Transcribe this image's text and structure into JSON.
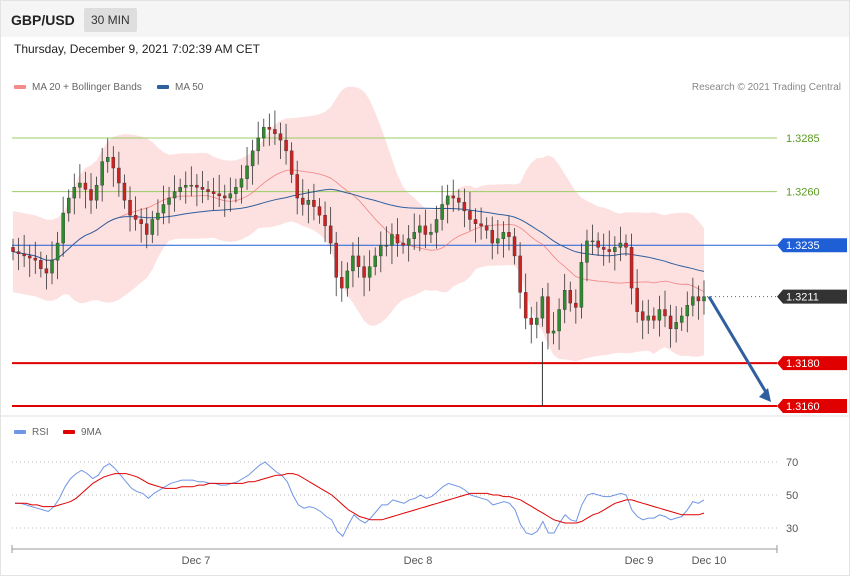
{
  "header": {
    "symbol": "GBP/USD",
    "timeframe": "30 MIN"
  },
  "datetime": "Thursday, December 9, 2021 7:02:39 AM CET",
  "legend": {
    "ma_bb": "MA 20 + Bollinger Bands",
    "ma50": "MA 50",
    "rsi": "RSI",
    "rsi_ma": "9MA"
  },
  "copyright": "Research © 2021 Trading Central",
  "colors": {
    "ma20": "#ef6b6b",
    "bands": "#fde0e0",
    "ma50": "#2f5f9e",
    "bull": "#2e8b2e",
    "bear": "#cc2222",
    "resistance": "#9ccc65",
    "pivot": "#1f5fd6",
    "support": "#e00000",
    "current": "#333333",
    "rsi": "#6f95e6",
    "rsi_ma": "#e00000",
    "arrow": "#2f5f9e"
  },
  "chart_data": [
    {
      "type": "candlestick",
      "title": "GBP/USD",
      "ylim": [
        1.316,
        1.33
      ],
      "levels": [
        {
          "label": "1.3285",
          "value": 1.3285,
          "kind": "resistance"
        },
        {
          "label": "1.3260",
          "value": 1.326,
          "kind": "resistance"
        },
        {
          "label": "1.3235",
          "value": 1.3235,
          "kind": "pivot"
        },
        {
          "label": "1.3211",
          "value": 1.3211,
          "kind": "current"
        },
        {
          "label": "1.3180",
          "value": 1.318,
          "kind": "support"
        },
        {
          "label": "1.3160",
          "value": 1.316,
          "kind": "support"
        }
      ],
      "forecast_arrow": {
        "from": 1.3211,
        "to": 1.316,
        "direction": "down"
      },
      "close": [
        1.3232,
        1.3231,
        1.323,
        1.3229,
        1.3228,
        1.3224,
        1.3222,
        1.3228,
        1.3236,
        1.325,
        1.3257,
        1.3262,
        1.3264,
        1.3261,
        1.3256,
        1.3263,
        1.3274,
        1.3276,
        1.3271,
        1.3264,
        1.3256,
        1.3249,
        1.3247,
        1.3245,
        1.324,
        1.3247,
        1.325,
        1.3254,
        1.3257,
        1.326,
        1.3262,
        1.3263,
        1.3263,
        1.3262,
        1.3261,
        1.326,
        1.3259,
        1.3258,
        1.3257,
        1.3259,
        1.3262,
        1.3266,
        1.3272,
        1.3279,
        1.3285,
        1.329,
        1.3289,
        1.3287,
        1.3284,
        1.3279,
        1.3268,
        1.3257,
        1.3254,
        1.3256,
        1.3253,
        1.3249,
        1.3244,
        1.3236,
        1.322,
        1.3215,
        1.3223,
        1.323,
        1.3225,
        1.322,
        1.3225,
        1.323,
        1.3235,
        1.3235,
        1.324,
        1.3236,
        1.3235,
        1.3238,
        1.3241,
        1.3244,
        1.324,
        1.3241,
        1.3247,
        1.3254,
        1.3258,
        1.3257,
        1.3255,
        1.3251,
        1.3247,
        1.3245,
        1.3244,
        1.3242,
        1.3236,
        1.3238,
        1.3241,
        1.3239,
        1.323,
        1.3213,
        1.3201,
        1.3198,
        1.3201,
        1.3211,
        1.3194,
        1.3195,
        1.3205,
        1.3214,
        1.3208,
        1.3206,
        1.3227,
        1.3237,
        1.3237,
        1.3234,
        1.3233,
        1.3232,
        1.3234,
        1.3236,
        1.3234,
        1.3215,
        1.3204,
        1.32,
        1.3202,
        1.32,
        1.3205,
        1.3202,
        1.3196,
        1.3199,
        1.3202,
        1.3207,
        1.3211,
        1.3209,
        1.3211
      ]
    },
    {
      "type": "line",
      "title": "RSI",
      "ylim": [
        20,
        80
      ],
      "yticks": [
        30,
        50,
        70
      ],
      "xlabels": [
        "Dec 7",
        "Dec 8",
        "Dec 9",
        "Dec 10"
      ],
      "series": [
        {
          "name": "RSI",
          "values": [
            45,
            45,
            44,
            43,
            42,
            41,
            40,
            43,
            48,
            55,
            60,
            63,
            65,
            63,
            60,
            62,
            67,
            69,
            66,
            62,
            58,
            54,
            52,
            51,
            48,
            51,
            53,
            55,
            57,
            58,
            59,
            59,
            59,
            58,
            58,
            57,
            57,
            56,
            56,
            57,
            58,
            60,
            62,
            65,
            68,
            70,
            67,
            64,
            62,
            58,
            50,
            44,
            42,
            43,
            42,
            40,
            37,
            35,
            28,
            25,
            32,
            38,
            35,
            33,
            36,
            40,
            44,
            44,
            47,
            46,
            45,
            47,
            48,
            50,
            48,
            49,
            52,
            55,
            57,
            56,
            55,
            53,
            50,
            49,
            48,
            47,
            44,
            45,
            46,
            45,
            41,
            32,
            27,
            26,
            28,
            34,
            27,
            27,
            33,
            38,
            35,
            34,
            44,
            50,
            51,
            50,
            49,
            49,
            50,
            51,
            50,
            41,
            37,
            35,
            36,
            36,
            38,
            37,
            35,
            36,
            37,
            41,
            46,
            45,
            47
          ]
        },
        {
          "name": "9MA",
          "values": [
            45,
            45,
            45,
            44,
            44,
            43,
            43,
            43,
            44,
            45,
            46,
            48,
            51,
            54,
            57,
            59,
            61,
            62,
            63,
            63,
            63,
            62,
            61,
            59,
            57,
            56,
            55,
            54,
            54,
            54,
            55,
            55,
            55,
            56,
            56,
            57,
            57,
            57,
            57,
            57,
            57,
            57,
            58,
            58,
            59,
            60,
            61,
            62,
            62,
            63,
            63,
            62,
            60,
            58,
            56,
            54,
            52,
            50,
            47,
            44,
            41,
            39,
            37,
            36,
            35,
            35,
            35,
            36,
            37,
            38,
            39,
            40,
            41,
            42,
            43,
            44,
            45,
            46,
            47,
            48,
            49,
            50,
            51,
            51,
            51,
            51,
            50,
            50,
            49,
            49,
            48,
            47,
            45,
            43,
            41,
            39,
            37,
            35,
            34,
            33,
            33,
            33,
            34,
            36,
            38,
            39,
            41,
            43,
            45,
            46,
            47,
            47,
            46,
            45,
            44,
            43,
            42,
            41,
            40,
            39,
            38,
            38,
            38,
            38,
            39
          ]
        }
      ]
    }
  ]
}
